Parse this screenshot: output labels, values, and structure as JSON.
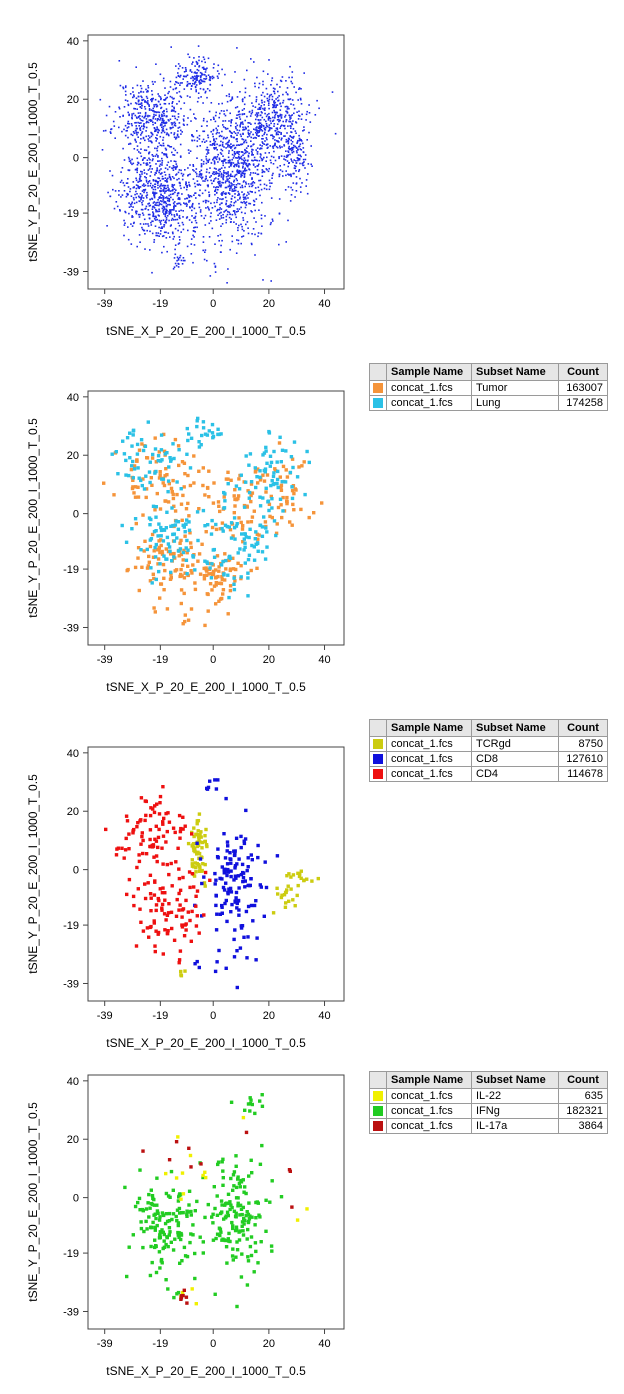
{
  "chart_data": [
    {
      "type": "scatter",
      "xlabel": "tSNE_X_P_20_E_200_I_1000_T_0.5",
      "ylabel": "tSNE_Y_P_20_E_200_I_1000_T_0.5",
      "xlim": [
        -45,
        47
      ],
      "ylim": [
        -45,
        42
      ],
      "x_ticks": [
        "-39",
        "-19",
        "0",
        "20",
        "40"
      ],
      "y_ticks": [
        "40",
        "20",
        "0",
        "-19",
        "-39"
      ],
      "grid": false,
      "series": [
        {
          "color": "#1f2ce6",
          "density": 3.2,
          "size": 1.6,
          "seed": 11,
          "clusters": [
            {
              "cx": -22,
              "cy": 14,
              "rx": 12,
              "ry": 12,
              "w": 1.0
            },
            {
              "cx": -6,
              "cy": 28,
              "rx": 6,
              "ry": 6,
              "w": 0.35
            },
            {
              "cx": -19,
              "cy": -13,
              "rx": 13,
              "ry": 15,
              "w": 1.6
            },
            {
              "cx": 7,
              "cy": -5,
              "rx": 13,
              "ry": 23,
              "w": 2.0
            },
            {
              "cx": 22,
              "cy": 13,
              "rx": 11,
              "ry": 13,
              "w": 0.9
            },
            {
              "cx": 29,
              "cy": 0,
              "rx": 5,
              "ry": 10,
              "w": 0.3
            },
            {
              "cx": -12,
              "cy": -36,
              "rx": 2.5,
              "ry": 2.5,
              "w": 0.04
            }
          ]
        }
      ],
      "legend": null
    },
    {
      "type": "scatter",
      "xlabel": "tSNE_X_P_20_E_200_I_1000_T_0.5",
      "ylabel": "tSNE_Y_P_20_E_200_I_1000_T_0.5",
      "xlim": [
        -45,
        47
      ],
      "ylim": [
        -45,
        42
      ],
      "x_ticks": [
        "-39",
        "-19",
        "0",
        "20",
        "40"
      ],
      "y_ticks": [
        "40",
        "20",
        "0",
        "-19",
        "-39"
      ],
      "grid": false,
      "series": [
        {
          "color": "#f5943a",
          "density": 0.55,
          "size": 3.4,
          "seed": 23,
          "clusters": [
            {
              "cx": -20,
              "cy": 12,
              "rx": 13,
              "ry": 11,
              "w": 1.0
            },
            {
              "cx": -17,
              "cy": -16,
              "rx": 12,
              "ry": 12,
              "w": 1.1
            },
            {
              "cx": 0,
              "cy": -22,
              "rx": 11,
              "ry": 10,
              "w": 1.0
            },
            {
              "cx": 8,
              "cy": 4,
              "rx": 12,
              "ry": 15,
              "w": 0.9
            },
            {
              "cx": 26,
              "cy": 6,
              "rx": 10,
              "ry": 12,
              "w": 0.6
            },
            {
              "cx": -10,
              "cy": -35,
              "rx": 3,
              "ry": 2.5,
              "w": 0.05
            }
          ]
        },
        {
          "color": "#2bc1e6",
          "density": 0.55,
          "size": 3.4,
          "seed": 37,
          "clusters": [
            {
              "cx": -22,
              "cy": 18,
              "rx": 11,
              "ry": 10,
              "w": 0.8
            },
            {
              "cx": -17,
              "cy": -8,
              "rx": 12,
              "ry": 12,
              "w": 1.0
            },
            {
              "cx": 8,
              "cy": -8,
              "rx": 11,
              "ry": 18,
              "w": 1.2
            },
            {
              "cx": 22,
              "cy": 16,
              "rx": 10,
              "ry": 12,
              "w": 0.8
            },
            {
              "cx": -3,
              "cy": 28,
              "rx": 6,
              "ry": 5,
              "w": 0.3
            }
          ]
        }
      ],
      "legend": {
        "headers": [
          "Sample Name",
          "Subset Name",
          "Count"
        ],
        "rows": [
          {
            "color": "#f5943a",
            "sample": "concat_1.fcs",
            "subset": "Tumor",
            "count": "163007"
          },
          {
            "color": "#2bc1e6",
            "sample": "concat_1.fcs",
            "subset": "Lung",
            "count": "174258"
          }
        ]
      }
    },
    {
      "type": "scatter",
      "xlabel": "tSNE_X_P_20_E_200_I_1000_T_0.5",
      "ylabel": "tSNE_Y_P_20_E_200_I_1000_T_0.5",
      "xlim": [
        -45,
        47
      ],
      "ylim": [
        -45,
        42
      ],
      "x_ticks": [
        "-39",
        "-19",
        "0",
        "20",
        "40"
      ],
      "y_ticks": [
        "40",
        "20",
        "0",
        "-19",
        "-39"
      ],
      "grid": false,
      "series": [
        {
          "color": "#cccc10",
          "density": 0.5,
          "size": 3.4,
          "seed": 41,
          "clusters": [
            {
              "cx": -5,
              "cy": 7,
              "rx": 3,
              "ry": 9,
              "w": 1.0
            },
            {
              "cx": 27,
              "cy": -8,
              "rx": 6,
              "ry": 6,
              "w": 0.3
            },
            {
              "cx": 32,
              "cy": -3,
              "rx": 4,
              "ry": 2,
              "w": 0.15
            },
            {
              "cx": -12,
              "cy": -35,
              "rx": 2,
              "ry": 2,
              "w": 0.05
            }
          ]
        },
        {
          "color": "#1010dd",
          "density": 0.5,
          "size": 3.4,
          "seed": 53,
          "clusters": [
            {
              "cx": 8,
              "cy": -6,
              "rx": 10,
              "ry": 22,
              "w": 2.0
            },
            {
              "cx": 0,
              "cy": 28,
              "rx": 3,
              "ry": 4,
              "w": 0.1
            },
            {
              "cx": -6,
              "cy": -33,
              "rx": 2,
              "ry": 2,
              "w": 0.04
            }
          ]
        },
        {
          "color": "#ee1010",
          "density": 0.5,
          "size": 3.4,
          "seed": 67,
          "clusters": [
            {
              "cx": -21,
              "cy": 13,
              "rx": 11,
              "ry": 11,
              "w": 1.0
            },
            {
              "cx": -18,
              "cy": -14,
              "rx": 11,
              "ry": 15,
              "w": 1.5
            },
            {
              "cx": -32,
              "cy": 7,
              "rx": 3,
              "ry": 3,
              "w": 0.08
            }
          ]
        }
      ],
      "legend": {
        "headers": [
          "Sample Name",
          "Subset Name",
          "Count"
        ],
        "rows": [
          {
            "color": "#cccc10",
            "sample": "concat_1.fcs",
            "subset": "TCRgd",
            "count": "8750"
          },
          {
            "color": "#1010dd",
            "sample": "concat_1.fcs",
            "subset": "CD8",
            "count": "127610"
          },
          {
            "color": "#ee1010",
            "sample": "concat_1.fcs",
            "subset": "CD4",
            "count": "114678"
          }
        ]
      }
    },
    {
      "type": "scatter",
      "xlabel": "tSNE_X_P_20_E_200_I_1000_T_0.5",
      "ylabel": "tSNE_Y_P_20_E_200_I_1000_T_0.5",
      "xlim": [
        -45,
        47
      ],
      "ylim": [
        -45,
        42
      ],
      "x_ticks": [
        "-39",
        "-19",
        "0",
        "20",
        "40"
      ],
      "y_ticks": [
        "40",
        "20",
        "0",
        "-19",
        "-39"
      ],
      "grid": false,
      "series": [
        {
          "color": "#22cc22",
          "density": 0.7,
          "size": 3.4,
          "seed": 71,
          "clusters": [
            {
              "cx": -17,
              "cy": -10,
              "rx": 12,
              "ry": 15,
              "w": 1.4
            },
            {
              "cx": 8,
              "cy": -6,
              "rx": 11,
              "ry": 18,
              "w": 1.6
            },
            {
              "cx": 14,
              "cy": 32,
              "rx": 5,
              "ry": 3,
              "w": 0.12
            },
            {
              "cx": -13,
              "cy": -33,
              "rx": 3,
              "ry": 2,
              "w": 0.04
            }
          ]
        },
        {
          "color": "#f0f000",
          "density": 0.25,
          "size": 3.4,
          "seed": 83,
          "clusters": [
            {
              "cx": -8,
              "cy": 8,
              "rx": 14,
              "ry": 14,
              "w": 0.3
            },
            {
              "cx": -10,
              "cy": -34,
              "rx": 3,
              "ry": 2,
              "w": 0.12
            },
            {
              "cx": 30,
              "cy": -5,
              "rx": 6,
              "ry": 4,
              "w": 0.05
            }
          ]
        },
        {
          "color": "#bb1010",
          "density": 0.25,
          "size": 3.4,
          "seed": 97,
          "clusters": [
            {
              "cx": -12,
              "cy": -34,
              "rx": 3,
              "ry": 2,
              "w": 0.2
            },
            {
              "cx": -15,
              "cy": 15,
              "rx": 16,
              "ry": 10,
              "w": 0.2
            },
            {
              "cx": 27,
              "cy": 6,
              "rx": 6,
              "ry": 8,
              "w": 0.08
            }
          ]
        }
      ],
      "legend": {
        "headers": [
          "Sample Name",
          "Subset Name",
          "Count"
        ],
        "rows": [
          {
            "color": "#f0f000",
            "sample": "concat_1.fcs",
            "subset": "IL-22",
            "count": "635"
          },
          {
            "color": "#22cc22",
            "sample": "concat_1.fcs",
            "subset": "IFNg",
            "count": "182321"
          },
          {
            "color": "#bb1010",
            "sample": "concat_1.fcs",
            "subset": "IL-17a",
            "count": "3864"
          }
        ]
      }
    }
  ]
}
